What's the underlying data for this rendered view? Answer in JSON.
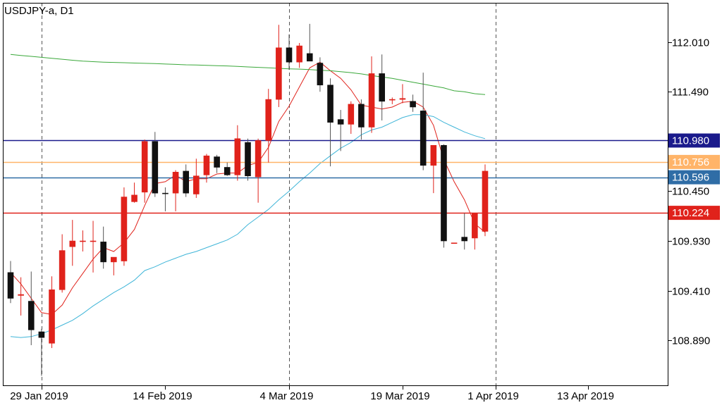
{
  "chart_data": {
    "type": "candlestick",
    "title": "USDJPY-a, D1",
    "y_ticks": [
      "112.010",
      "111.490",
      "110.450",
      "109.930",
      "109.410",
      "108.890"
    ],
    "x_ticks": [
      "29 Jan 2019",
      "14 Feb 2019",
      "4 Mar 2019",
      "19 Mar 2019",
      "1 Apr 2019",
      "13 Apr 2019"
    ],
    "ylim": [
      108.42,
      112.42
    ],
    "grid": false,
    "vertical_separators": [
      "29 Jan 2019",
      "4 Mar 2019",
      "1 Apr 2019"
    ],
    "dates": [
      "2019-01-24",
      "2019-01-25",
      "2019-01-28",
      "2019-01-29",
      "2019-01-30",
      "2019-01-31",
      "2019-02-01",
      "2019-02-04",
      "2019-02-05",
      "2019-02-06",
      "2019-02-07",
      "2019-02-08",
      "2019-02-11",
      "2019-02-12",
      "2019-02-13",
      "2019-02-14",
      "2019-02-15",
      "2019-02-18",
      "2019-02-19",
      "2019-02-20",
      "2019-02-21",
      "2019-02-22",
      "2019-02-25",
      "2019-02-26",
      "2019-02-27",
      "2019-02-28",
      "2019-03-01",
      "2019-03-04",
      "2019-03-05",
      "2019-03-06",
      "2019-03-07",
      "2019-03-08",
      "2019-03-11",
      "2019-03-12",
      "2019-03-13",
      "2019-03-14",
      "2019-03-15",
      "2019-03-18",
      "2019-03-19",
      "2019-03-20",
      "2019-03-21",
      "2019-03-22",
      "2019-03-25",
      "2019-03-26",
      "2019-03-27",
      "2019-03-28",
      "2019-03-29"
    ],
    "candles": [
      {
        "o": 109.6,
        "h": 109.72,
        "l": 109.28,
        "c": 109.33,
        "dir": "down"
      },
      {
        "o": 109.36,
        "h": 109.55,
        "l": 109.15,
        "c": 109.37,
        "dir": "up"
      },
      {
        "o": 109.3,
        "h": 109.61,
        "l": 108.84,
        "c": 109.0,
        "dir": "down"
      },
      {
        "o": 108.98,
        "h": 109.01,
        "l": 108.52,
        "c": 108.92,
        "dir": "down"
      },
      {
        "o": 108.86,
        "h": 109.56,
        "l": 108.81,
        "c": 109.42,
        "dir": "up"
      },
      {
        "o": 109.42,
        "h": 110.0,
        "l": 109.39,
        "c": 109.83,
        "dir": "up"
      },
      {
        "o": 109.87,
        "h": 110.15,
        "l": 109.67,
        "c": 109.93,
        "dir": "up"
      },
      {
        "o": 109.93,
        "h": 110.04,
        "l": 109.82,
        "c": 109.93,
        "dir": "up"
      },
      {
        "o": 109.93,
        "h": 110.14,
        "l": 109.6,
        "c": 109.93,
        "dir": "up"
      },
      {
        "o": 109.92,
        "h": 110.08,
        "l": 109.64,
        "c": 109.71,
        "dir": "down"
      },
      {
        "o": 109.71,
        "h": 109.73,
        "l": 109.57,
        "c": 109.76,
        "dir": "up"
      },
      {
        "o": 109.72,
        "h": 110.49,
        "l": 109.67,
        "c": 110.39,
        "dir": "up"
      },
      {
        "o": 110.34,
        "h": 110.54,
        "l": 110.33,
        "c": 110.41,
        "dir": "up"
      },
      {
        "o": 110.44,
        "h": 110.99,
        "l": 110.33,
        "c": 110.97,
        "dir": "up"
      },
      {
        "o": 110.97,
        "h": 111.07,
        "l": 110.39,
        "c": 110.43,
        "dir": "down"
      },
      {
        "o": 110.43,
        "h": 110.49,
        "l": 110.24,
        "c": 110.43,
        "dir": "down"
      },
      {
        "o": 110.43,
        "h": 110.67,
        "l": 110.24,
        "c": 110.65,
        "dir": "up"
      },
      {
        "o": 110.66,
        "h": 110.73,
        "l": 110.39,
        "c": 110.43,
        "dir": "down"
      },
      {
        "o": 110.42,
        "h": 110.79,
        "l": 110.38,
        "c": 110.61,
        "dir": "up"
      },
      {
        "o": 110.62,
        "h": 110.84,
        "l": 110.54,
        "c": 110.82,
        "dir": "up"
      },
      {
        "o": 110.81,
        "h": 110.83,
        "l": 110.64,
        "c": 110.7,
        "dir": "down"
      },
      {
        "o": 110.7,
        "h": 110.75,
        "l": 110.61,
        "c": 110.62,
        "dir": "down"
      },
      {
        "o": 110.62,
        "h": 111.14,
        "l": 110.56,
        "c": 111.0,
        "dir": "up"
      },
      {
        "o": 110.96,
        "h": 111.0,
        "l": 110.56,
        "c": 110.61,
        "dir": "down"
      },
      {
        "o": 110.6,
        "h": 111.0,
        "l": 110.33,
        "c": 110.98,
        "dir": "up"
      },
      {
        "o": 110.98,
        "h": 111.52,
        "l": 110.75,
        "c": 111.41,
        "dir": "up"
      },
      {
        "o": 111.41,
        "h": 112.19,
        "l": 111.33,
        "c": 111.95,
        "dir": "up"
      },
      {
        "o": 111.95,
        "h": 112.09,
        "l": 111.72,
        "c": 111.8,
        "dir": "down"
      },
      {
        "o": 111.8,
        "h": 112.0,
        "l": 111.74,
        "c": 111.97,
        "dir": "up"
      },
      {
        "o": 111.89,
        "h": 112.2,
        "l": 111.82,
        "c": 111.81,
        "dir": "down"
      },
      {
        "o": 111.79,
        "h": 111.85,
        "l": 111.49,
        "c": 111.56,
        "dir": "down"
      },
      {
        "o": 111.56,
        "h": 111.63,
        "l": 110.71,
        "c": 111.17,
        "dir": "down"
      },
      {
        "o": 111.2,
        "h": 111.3,
        "l": 110.87,
        "c": 111.15,
        "dir": "down"
      },
      {
        "o": 111.15,
        "h": 111.39,
        "l": 111.05,
        "c": 111.36,
        "dir": "up"
      },
      {
        "o": 111.36,
        "h": 111.41,
        "l": 110.99,
        "c": 111.12,
        "dir": "down"
      },
      {
        "o": 111.12,
        "h": 111.86,
        "l": 111.06,
        "c": 111.68,
        "dir": "up"
      },
      {
        "o": 111.68,
        "h": 111.88,
        "l": 111.19,
        "c": 111.39,
        "dir": "down"
      },
      {
        "o": 111.41,
        "h": 111.43,
        "l": 111.36,
        "c": 111.41,
        "dir": "up"
      },
      {
        "o": 111.41,
        "h": 111.57,
        "l": 111.37,
        "c": 111.42,
        "dir": "up"
      },
      {
        "o": 111.39,
        "h": 111.46,
        "l": 111.28,
        "c": 111.33,
        "dir": "down"
      },
      {
        "o": 111.29,
        "h": 111.69,
        "l": 110.67,
        "c": 110.72,
        "dir": "down"
      },
      {
        "o": 110.72,
        "h": 110.93,
        "l": 110.43,
        "c": 110.93,
        "dir": "up"
      },
      {
        "o": 110.93,
        "h": 110.94,
        "l": 109.86,
        "c": 109.93,
        "dir": "down"
      },
      {
        "o": 109.91,
        "h": 109.91,
        "l": 109.9,
        "c": 109.91,
        "dir": "up"
      },
      {
        "o": 109.93,
        "h": 110.22,
        "l": 109.84,
        "c": 109.97,
        "dir": "down"
      },
      {
        "o": 109.96,
        "h": 110.22,
        "l": 109.84,
        "c": 110.22,
        "dir": "up"
      },
      {
        "o": 110.03,
        "h": 110.73,
        "l": 109.98,
        "c": 110.66,
        "dir": "up"
      }
    ],
    "series": [
      {
        "type": "line",
        "color": "#e0221b",
        "values": [
          109.6,
          109.48,
          109.33,
          109.18,
          109.16,
          109.26,
          109.44,
          109.59,
          109.74,
          109.86,
          109.82,
          109.91,
          110.05,
          110.3,
          110.53,
          110.55,
          110.62,
          110.55,
          110.58,
          110.58,
          110.63,
          110.64,
          110.64,
          110.72,
          110.75,
          110.91,
          111.18,
          111.34,
          111.54,
          111.74,
          111.8,
          111.71,
          111.63,
          111.51,
          111.35,
          111.33,
          111.31,
          111.33,
          111.38,
          111.39,
          111.33,
          111.14,
          110.78,
          110.55,
          110.36,
          110.11,
          110.02
        ]
      },
      {
        "type": "line",
        "color": "#3fb5d8",
        "values": [
          108.93,
          108.92,
          108.93,
          108.96,
          109.0,
          109.05,
          109.1,
          109.17,
          109.25,
          109.32,
          109.39,
          109.45,
          109.52,
          109.62,
          109.66,
          109.71,
          109.75,
          109.79,
          109.82,
          109.86,
          109.9,
          109.94,
          110.0,
          110.1,
          110.18,
          110.26,
          110.36,
          110.45,
          110.55,
          110.64,
          110.74,
          110.82,
          110.9,
          110.96,
          111.04,
          111.09,
          111.12,
          111.17,
          111.22,
          111.25,
          111.25,
          111.23,
          111.17,
          111.12,
          111.07,
          111.03,
          111.0
        ]
      },
      {
        "type": "line",
        "color": "#3aa83a",
        "values": [
          111.88,
          111.87,
          111.86,
          111.85,
          111.84,
          111.83,
          111.82,
          111.81,
          111.805,
          111.8,
          111.797,
          111.794,
          111.79,
          111.787,
          111.784,
          111.78,
          111.776,
          111.772,
          111.77,
          111.766,
          111.762,
          111.76,
          111.755,
          111.75,
          111.745,
          111.74,
          111.735,
          111.73,
          111.727,
          111.722,
          111.715,
          111.71,
          111.7,
          111.69,
          111.677,
          111.66,
          111.645,
          111.63,
          111.61,
          111.59,
          111.57,
          111.55,
          111.53,
          111.5,
          111.49,
          111.47,
          111.46
        ]
      }
    ],
    "horizontal_lines": [
      {
        "value": 110.98,
        "label": "110.980",
        "color": "#1a1a8c"
      },
      {
        "value": 110.756,
        "label": "110.756",
        "color": "#ffb469"
      },
      {
        "value": 110.596,
        "label": "110.596",
        "color": "#2f6da6"
      },
      {
        "value": 110.224,
        "label": "110.224",
        "color": "#e0221b"
      }
    ],
    "colors": {
      "up": "#e0221b",
      "down": "#111111",
      "axis": "#000000",
      "separator": "#555555"
    }
  }
}
